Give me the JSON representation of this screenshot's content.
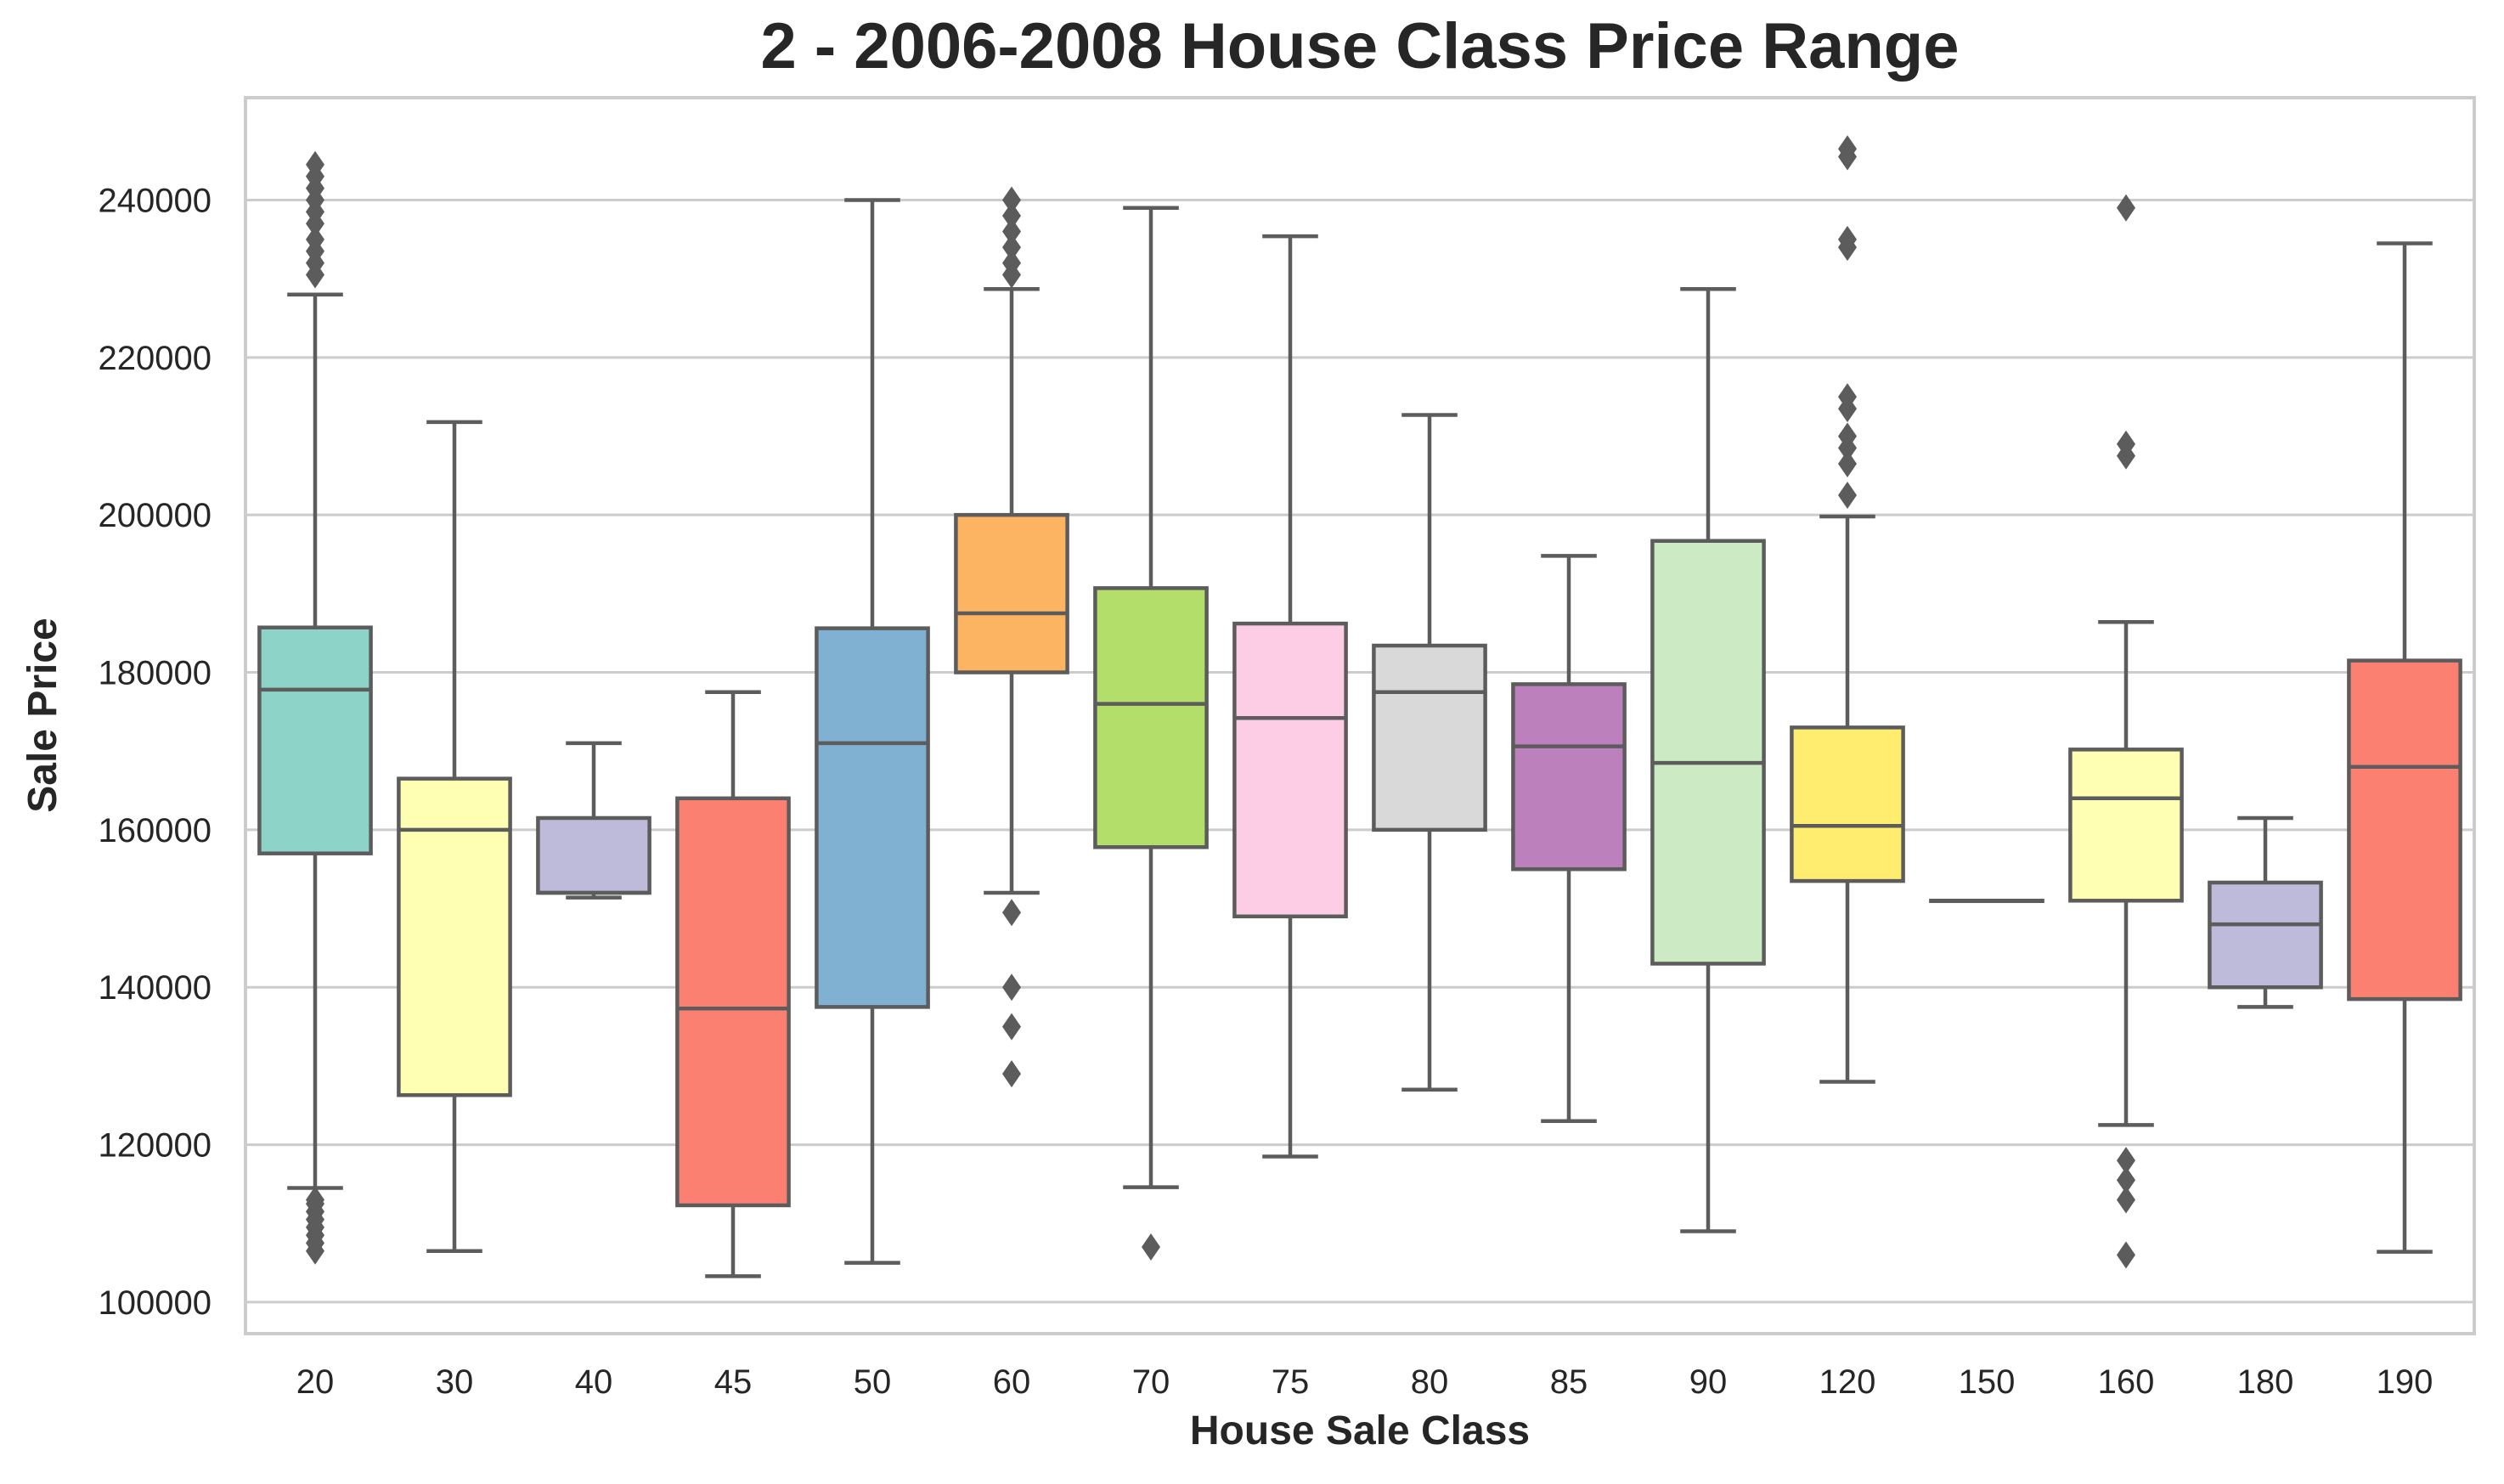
{
  "chart_data": {
    "type": "box",
    "title": "2 - 2006-2008 House Class Price Range",
    "xlabel": "House Sale Class",
    "ylabel": "Sale Price",
    "ylim": [
      96000,
      253000
    ],
    "yticks": [
      100000,
      120000,
      140000,
      160000,
      180000,
      200000,
      220000,
      240000
    ],
    "grid": true,
    "categories": [
      "20",
      "30",
      "40",
      "45",
      "50",
      "60",
      "70",
      "75",
      "80",
      "85",
      "90",
      "120",
      "150",
      "160",
      "180",
      "190"
    ],
    "boxes": [
      {
        "category": "20",
        "color": "#8dd3c7",
        "whisker_low": 114500,
        "q1": 157000,
        "median": 177800,
        "q3": 185700,
        "whisker_high": 228000,
        "outliers": [
          106500,
          107500,
          108500,
          109500,
          110500,
          111500,
          112500,
          113000,
          230500,
          232000,
          233500,
          235000,
          237000,
          238500,
          240000,
          241500,
          243000,
          244500
        ]
      },
      {
        "category": "30",
        "color": "#ffffb3",
        "whisker_low": 106500,
        "q1": 126300,
        "median": 160000,
        "q3": 166500,
        "whisker_high": 211800,
        "outliers": []
      },
      {
        "category": "40",
        "color": "#bebada",
        "whisker_low": 151400,
        "q1": 152000,
        "median": 152000,
        "q3": 161500,
        "whisker_high": 171000,
        "outliers": []
      },
      {
        "category": "45",
        "color": "#fb8072",
        "whisker_low": 103300,
        "q1": 112300,
        "median": 137300,
        "q3": 164000,
        "whisker_high": 177500,
        "outliers": []
      },
      {
        "category": "50",
        "color": "#80b1d3",
        "whisker_low": 105000,
        "q1": 137500,
        "median": 171000,
        "q3": 185600,
        "whisker_high": 240000,
        "outliers": []
      },
      {
        "category": "60",
        "color": "#fdb462",
        "whisker_low": 152000,
        "q1": 180000,
        "median": 187500,
        "q3": 200000,
        "whisker_high": 228700,
        "outliers": [
          129000,
          135000,
          140000,
          149500,
          230500,
          232000,
          234000,
          236000,
          238000,
          240000
        ]
      },
      {
        "category": "70",
        "color": "#b3de69",
        "whisker_low": 114600,
        "q1": 157800,
        "median": 176000,
        "q3": 190700,
        "whisker_high": 239000,
        "outliers": [
          107000
        ]
      },
      {
        "category": "75",
        "color": "#fccde5",
        "whisker_low": 118500,
        "q1": 149000,
        "median": 174200,
        "q3": 186200,
        "whisker_high": 235400,
        "outliers": []
      },
      {
        "category": "80",
        "color": "#d9d9d9",
        "whisker_low": 127000,
        "q1": 160000,
        "median": 177500,
        "q3": 183400,
        "whisker_high": 212700,
        "outliers": []
      },
      {
        "category": "85",
        "color": "#bc80bd",
        "whisker_low": 123000,
        "q1": 155000,
        "median": 170600,
        "q3": 178500,
        "whisker_high": 194800,
        "outliers": []
      },
      {
        "category": "90",
        "color": "#ccebc5",
        "whisker_low": 109000,
        "q1": 143000,
        "median": 168500,
        "q3": 196700,
        "whisker_high": 228700,
        "outliers": []
      },
      {
        "category": "120",
        "color": "#ffed6f",
        "whisker_low": 128000,
        "q1": 153500,
        "median": 160500,
        "q3": 173000,
        "whisker_high": 199800,
        "outliers": [
          202500,
          206500,
          208500,
          210000,
          213500,
          215000,
          234000,
          235000,
          245500,
          246500
        ]
      },
      {
        "category": "150",
        "color": "#8dd3c7",
        "whisker_low": 151000,
        "q1": 151000,
        "median": 151000,
        "q3": 151000,
        "whisker_high": 151000,
        "outliers": []
      },
      {
        "category": "160",
        "color": "#ffffb3",
        "whisker_low": 122500,
        "q1": 151000,
        "median": 164000,
        "q3": 170200,
        "whisker_high": 186400,
        "outliers": [
          106000,
          113000,
          115500,
          118000,
          207500,
          209000,
          239000
        ]
      },
      {
        "category": "180",
        "color": "#bebada",
        "whisker_low": 137500,
        "q1": 140000,
        "median": 148000,
        "q3": 153300,
        "whisker_high": 161500,
        "outliers": []
      },
      {
        "category": "190",
        "color": "#fb8072",
        "whisker_low": 106400,
        "q1": 138500,
        "median": 168000,
        "q3": 181500,
        "whisker_high": 234500,
        "outliers": []
      }
    ]
  }
}
